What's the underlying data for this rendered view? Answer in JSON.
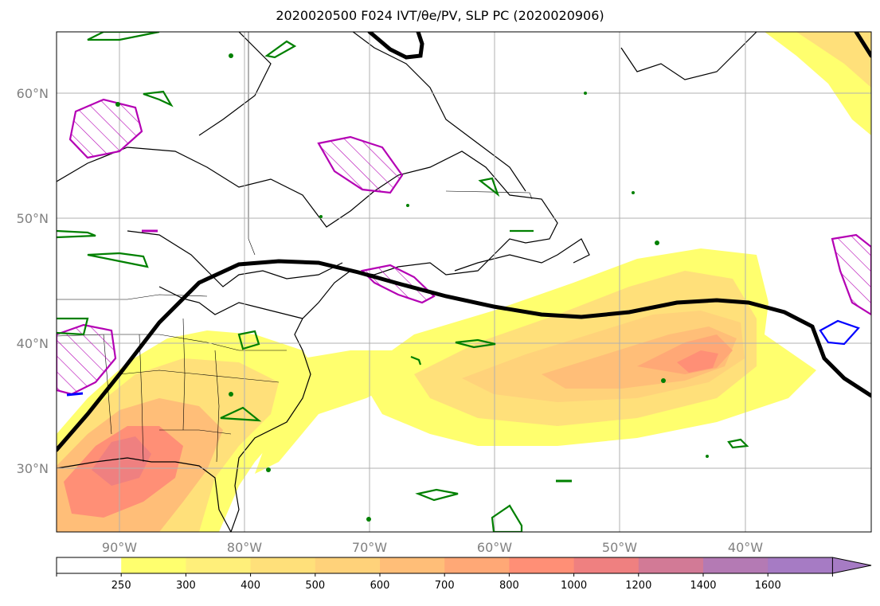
{
  "title": "2020020500 F024 IVT/θe/PV, SLP PC (2020020906)",
  "axes": {
    "lat_labels": [
      "60°N",
      "50°N",
      "40°N",
      "30°N"
    ],
    "lon_labels": [
      "90°W",
      "80°W",
      "70°W",
      "60°W",
      "50°W",
      "40°W"
    ]
  },
  "colorbar": {
    "levels": [
      "250",
      "300",
      "400",
      "500",
      "600",
      "700",
      "800",
      "1000",
      "1200",
      "1400",
      "1600"
    ],
    "colors": [
      "#ffffff",
      "#ffff6e",
      "#ffef7a",
      "#ffe07a",
      "#ffd27a",
      "#ffbe78",
      "#ffa876",
      "#ff8f76",
      "#ef8080",
      "#d27a96",
      "#b47ab4",
      "#a67bc4"
    ],
    "extend": "max"
  },
  "colors": {
    "slp_contour": "#000000",
    "pv_contour": "#008000",
    "theta_hatch": "#b400b4",
    "blue_contour": "#0000ff",
    "grid": "#b0b0b0"
  }
}
